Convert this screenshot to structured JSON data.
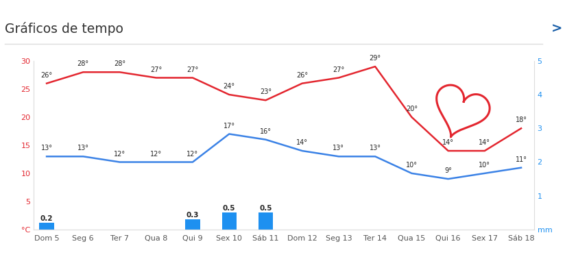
{
  "chart_data": {
    "type": "line",
    "title": "Gráficos de tempo",
    "annotations": [
      ">"
    ],
    "categories": [
      "Dom 5",
      "Seg 6",
      "Ter 7",
      "Qua 8",
      "Qui 9",
      "Sex 10",
      "Sáb 11",
      "Dom 12",
      "Seg 13",
      "Ter 14",
      "Qua 15",
      "Qui 16",
      "Sex 17",
      "Sáb 18"
    ],
    "series": [
      {
        "type": "line",
        "color": "#e3262f",
        "marker": "none",
        "line_style": "solid",
        "values": [
          26,
          28,
          28,
          27,
          27,
          24,
          23,
          26,
          27,
          29,
          20,
          14,
          14,
          18
        ],
        "value_labels": [
          "26°",
          "28°",
          "28°",
          "27°",
          "27°",
          "24°",
          "23°",
          "26°",
          "27°",
          "29°",
          "20°",
          "14°",
          "14°",
          "18°"
        ]
      },
      {
        "type": "line",
        "color": "#3b82e6",
        "marker": "none",
        "line_style": "solid",
        "values": [
          13,
          13,
          12,
          12,
          12,
          17,
          16,
          14,
          13,
          13,
          10,
          9,
          10,
          11
        ],
        "value_labels": [
          "13°",
          "13°",
          "12°",
          "12°",
          "12°",
          "17°",
          "16°",
          "14°",
          "13°",
          "13°",
          "10°",
          "9°",
          "10°",
          "11°"
        ]
      },
      {
        "type": "bar",
        "axis": "y2",
        "color": "#1e90f0",
        "values": [
          0.2,
          null,
          null,
          null,
          0.3,
          0.5,
          0.5,
          null,
          null,
          null,
          null,
          null,
          null,
          null
        ]
      }
    ],
    "ylim": [
      0,
      30
    ],
    "yticks": [
      {
        "value": 0,
        "label": "°C"
      },
      5,
      10,
      15,
      20,
      25,
      30
    ],
    "y2lim": [
      0,
      5
    ],
    "y2ticks": [
      {
        "value": 0,
        "label": "mm"
      },
      1,
      2,
      3,
      4,
      5
    ],
    "grid": false,
    "data_labels": true
  }
}
